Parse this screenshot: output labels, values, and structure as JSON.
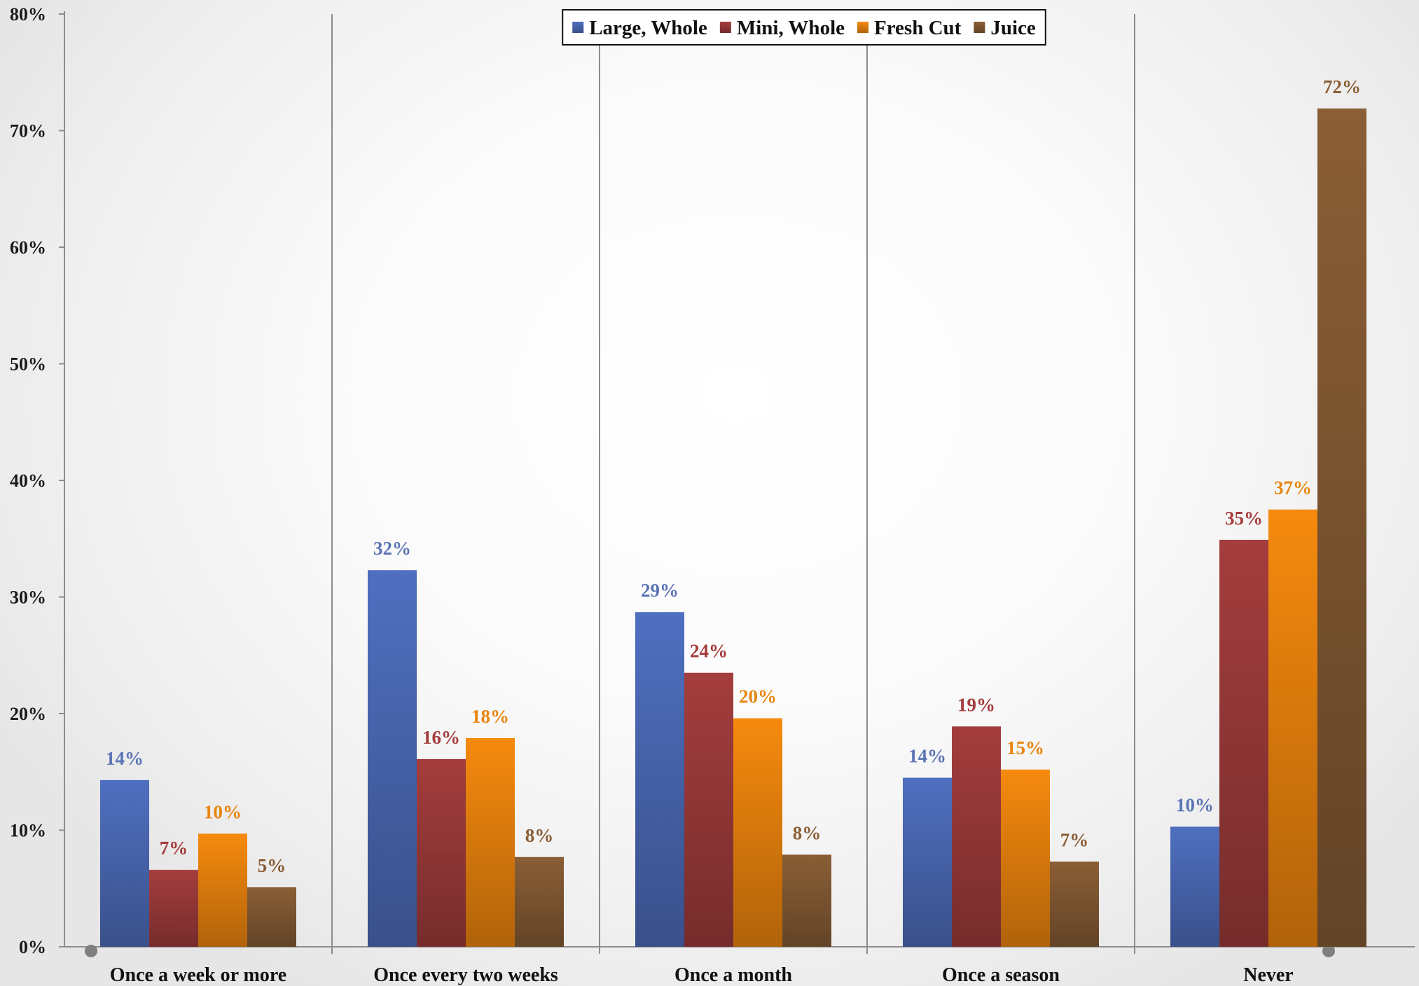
{
  "chart_data": {
    "type": "bar",
    "title": "",
    "xlabel": "",
    "ylabel": "",
    "ylim": [
      0,
      80
    ],
    "y_tick_step": 10,
    "y_tick_format": "percent",
    "grid": false,
    "category_separators": true,
    "legend_position": "top-center",
    "categories": [
      "Once a week or more",
      "Once every two weeks",
      "Once a month",
      "Once a season",
      "Never"
    ],
    "series": [
      {
        "name": "Large, Whole",
        "color": "#4F6FC0",
        "label_color": "#5B74B5",
        "values": [
          14.3,
          32.3,
          28.7,
          14.5,
          10.3
        ],
        "labels": [
          "14%",
          "32%",
          "29%",
          "14%",
          "10%"
        ]
      },
      {
        "name": "Mini, Whole",
        "color": "#A43D3D",
        "label_color": "#A53B3B",
        "values": [
          6.6,
          16.1,
          23.5,
          18.9,
          34.9
        ],
        "labels": [
          "7%",
          "16%",
          "24%",
          "19%",
          "35%"
        ]
      },
      {
        "name": "Fresh Cut",
        "color": "#F68A0E",
        "label_color": "#E8850E",
        "values": [
          9.7,
          17.9,
          19.6,
          15.2,
          37.5
        ],
        "labels": [
          "10%",
          "18%",
          "20%",
          "15%",
          "37%"
        ]
      },
      {
        "name": "Juice",
        "color": "#8A5E36",
        "label_color": "#8A5E36",
        "values": [
          5.1,
          7.7,
          7.9,
          7.3,
          71.9
        ],
        "labels": [
          "5%",
          "8%",
          "8%",
          "7%",
          "72%"
        ]
      }
    ]
  }
}
